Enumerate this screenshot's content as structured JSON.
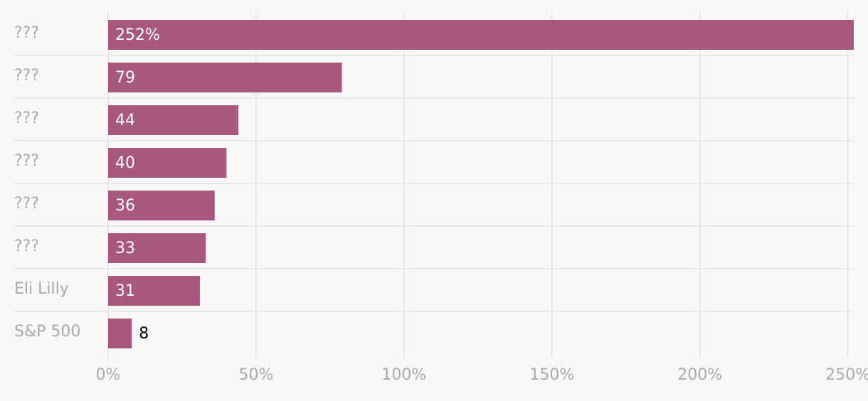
{
  "chart_data": {
    "type": "bar",
    "orientation": "horizontal",
    "categories": [
      "???",
      "???",
      "???",
      "???",
      "???",
      "???",
      "Eli Lilly",
      "S&P 500"
    ],
    "values": [
      252,
      79,
      44,
      40,
      36,
      33,
      31,
      8
    ],
    "value_labels": [
      "252%",
      "79",
      "44",
      "40",
      "36",
      "33",
      "31",
      "8"
    ],
    "color": "#a8577f",
    "xlim": [
      0,
      252
    ],
    "xticks": [
      {
        "value": 0,
        "label": "0%"
      },
      {
        "value": 50,
        "label": "50%"
      },
      {
        "value": 100,
        "label": "100%"
      },
      {
        "value": 150,
        "label": "150%"
      },
      {
        "value": 200,
        "label": "200%"
      },
      {
        "value": 250,
        "label": "250%"
      }
    ],
    "grid": true
  }
}
